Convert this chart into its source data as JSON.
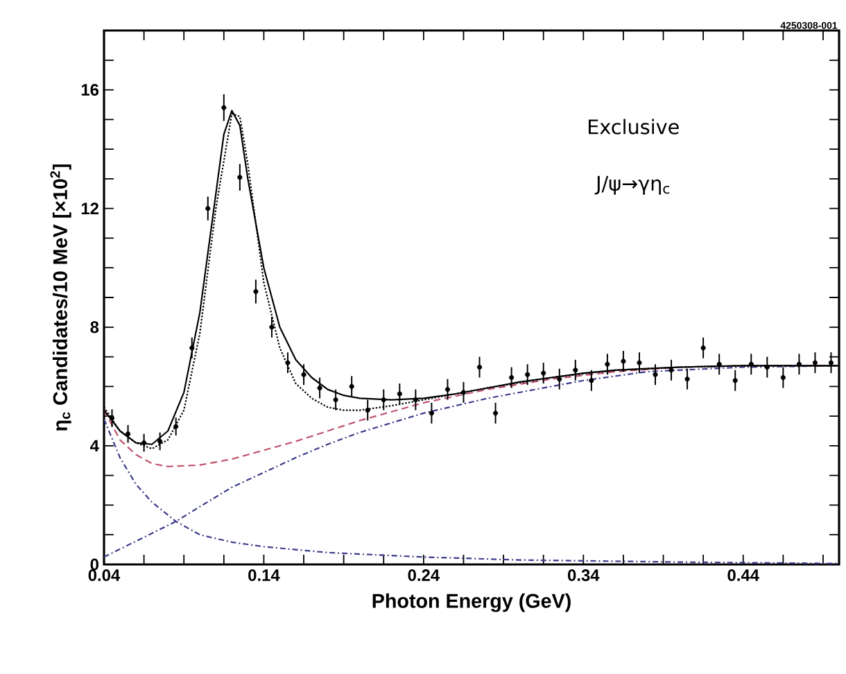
{
  "chart_data": {
    "type": "scatter",
    "xlabel": "Photon Energy (GeV)",
    "ylabel": "η$_{c}$ Candidates/10 MeV [×10$^{2}$]",
    "annotations": [
      "4250308-001",
      "Exclusive",
      "J/ψ→γη$_{c}$"
    ],
    "xlim": [
      0.04,
      0.5
    ],
    "ylim": [
      0,
      18
    ],
    "xticks": [
      0.04,
      {
        "value": 0.065,
        "label": null
      },
      {
        "value": 0.09,
        "label": null
      },
      {
        "value": 0.115,
        "label": null
      },
      0.14,
      {
        "value": 0.165,
        "label": null
      },
      {
        "value": 0.19,
        "label": null
      },
      {
        "value": 0.215,
        "label": null
      },
      0.24,
      {
        "value": 0.265,
        "label": null
      },
      {
        "value": 0.29,
        "label": null
      },
      {
        "value": 0.315,
        "label": null
      },
      0.34,
      {
        "value": 0.365,
        "label": null
      },
      {
        "value": 0.39,
        "label": null
      },
      {
        "value": 0.415,
        "label": null
      },
      0.44,
      {
        "value": 0.465,
        "label": null
      },
      {
        "value": 0.49,
        "label": null
      }
    ],
    "yticks": [
      0,
      {
        "value": 1,
        "label": null
      },
      {
        "value": 2,
        "label": null
      },
      {
        "value": 3,
        "label": null
      },
      4,
      {
        "value": 5,
        "label": null
      },
      {
        "value": 6,
        "label": null
      },
      {
        "value": 7,
        "label": null
      },
      8,
      {
        "value": 9,
        "label": null
      },
      {
        "value": 10,
        "label": null
      },
      {
        "value": 11,
        "label": null
      },
      12,
      {
        "value": 13,
        "label": null
      },
      {
        "value": 14,
        "label": null
      },
      {
        "value": 15,
        "label": null
      },
      16,
      {
        "value": 17,
        "label": null
      }
    ],
    "grid": false,
    "series": [
      {
        "type": "line",
        "color": "#3a3a8c",
        "line_style": "dashdot",
        "x": [
          0.04,
          0.05,
          0.06,
          0.07,
          0.085,
          0.1,
          0.12,
          0.14,
          0.18,
          0.24,
          0.3,
          0.4,
          0.5
        ],
        "values": [
          4.9,
          3.6,
          2.7,
          2.1,
          1.45,
          1.0,
          0.75,
          0.6,
          0.4,
          0.25,
          0.15,
          0.08,
          0.03
        ]
      },
      {
        "type": "line",
        "color": "#3a3a8c",
        "line_style": "dashdot",
        "x": [
          0.04,
          0.085,
          0.1,
          0.12,
          0.14,
          0.16,
          0.18,
          0.2,
          0.24,
          0.28,
          0.34,
          0.38,
          0.44,
          0.5
        ],
        "values": [
          0.25,
          1.45,
          1.95,
          2.6,
          3.1,
          3.6,
          4.05,
          4.45,
          5.1,
          5.6,
          6.2,
          6.5,
          6.65,
          6.7
        ]
      },
      {
        "type": "line",
        "color": "#c0506a",
        "line_style": "dashed",
        "x": [
          0.04,
          0.05,
          0.06,
          0.07,
          0.08,
          0.1,
          0.12,
          0.14,
          0.16,
          0.18,
          0.2,
          0.24,
          0.28,
          0.32,
          0.36,
          0.4,
          0.44,
          0.5
        ],
        "values": [
          5.2,
          4.2,
          3.7,
          3.4,
          3.3,
          3.35,
          3.55,
          3.85,
          4.15,
          4.5,
          4.85,
          5.45,
          5.9,
          6.25,
          6.5,
          6.65,
          6.7,
          6.7
        ]
      },
      {
        "type": "line",
        "color": "#000000",
        "line_style": "dotted",
        "x": [
          0.04,
          0.05,
          0.06,
          0.07,
          0.08,
          0.09,
          0.1,
          0.11,
          0.12,
          0.125,
          0.13,
          0.14,
          0.15,
          0.16,
          0.17,
          0.18,
          0.19,
          0.2,
          0.22,
          0.24,
          0.28,
          0.32,
          0.36,
          0.4,
          0.44,
          0.5
        ],
        "values": [
          5.3,
          4.5,
          4.1,
          3.9,
          4.2,
          5.2,
          7.8,
          12.0,
          15.2,
          15.1,
          13.5,
          9.5,
          7.3,
          6.1,
          5.6,
          5.3,
          5.2,
          5.2,
          5.35,
          5.55,
          5.95,
          6.3,
          6.55,
          6.65,
          6.7,
          6.7
        ]
      },
      {
        "type": "line",
        "color": "#000000",
        "line_style": "solid",
        "x": [
          0.04,
          0.05,
          0.06,
          0.07,
          0.08,
          0.09,
          0.1,
          0.11,
          0.115,
          0.12,
          0.125,
          0.13,
          0.14,
          0.15,
          0.16,
          0.17,
          0.18,
          0.19,
          0.2,
          0.22,
          0.24,
          0.26,
          0.28,
          0.3,
          0.32,
          0.34,
          0.36,
          0.38,
          0.4,
          0.44,
          0.5
        ],
        "values": [
          5.2,
          4.5,
          4.1,
          4.05,
          4.5,
          5.8,
          8.5,
          12.5,
          14.5,
          15.3,
          14.8,
          13.0,
          10.0,
          8.0,
          6.9,
          6.3,
          5.9,
          5.7,
          5.6,
          5.55,
          5.6,
          5.75,
          5.95,
          6.15,
          6.3,
          6.45,
          6.55,
          6.6,
          6.65,
          6.7,
          6.7
        ]
      },
      {
        "type": "scatter",
        "color": "#000000",
        "x": [
          0.045,
          0.055,
          0.065,
          0.075,
          0.085,
          0.095,
          0.105,
          0.115,
          0.125,
          0.135,
          0.145,
          0.155,
          0.165,
          0.175,
          0.185,
          0.195,
          0.205,
          0.215,
          0.225,
          0.235,
          0.245,
          0.255,
          0.265,
          0.275,
          0.285,
          0.295,
          0.305,
          0.315,
          0.325,
          0.335,
          0.345,
          0.355,
          0.365,
          0.375,
          0.385,
          0.395,
          0.405,
          0.415,
          0.425,
          0.435,
          0.445,
          0.455,
          0.465,
          0.475,
          0.485,
          0.495
        ],
        "values": [
          4.93,
          4.4,
          4.1,
          4.15,
          4.65,
          7.3,
          12.0,
          15.4,
          13.05,
          9.2,
          8.0,
          6.8,
          6.4,
          5.95,
          5.55,
          6.0,
          5.2,
          5.55,
          5.75,
          5.55,
          5.1,
          5.9,
          5.8,
          6.65,
          5.1,
          6.3,
          6.4,
          6.45,
          6.25,
          6.55,
          6.2,
          6.75,
          6.85,
          6.8,
          6.4,
          6.55,
          6.25,
          7.3,
          6.75,
          6.2,
          6.75,
          6.65,
          6.3,
          6.75,
          6.8,
          6.8
        ],
        "errors": [
          0.3,
          0.3,
          0.3,
          0.3,
          0.3,
          0.35,
          0.4,
          0.45,
          0.45,
          0.4,
          0.35,
          0.35,
          0.35,
          0.35,
          0.35,
          0.35,
          0.35,
          0.35,
          0.35,
          0.35,
          0.35,
          0.35,
          0.35,
          0.35,
          0.35,
          0.35,
          0.35,
          0.35,
          0.35,
          0.35,
          0.35,
          0.35,
          0.35,
          0.35,
          0.35,
          0.35,
          0.35,
          0.35,
          0.35,
          0.35,
          0.35,
          0.35,
          0.35,
          0.35,
          0.35,
          0.35
        ]
      }
    ]
  }
}
